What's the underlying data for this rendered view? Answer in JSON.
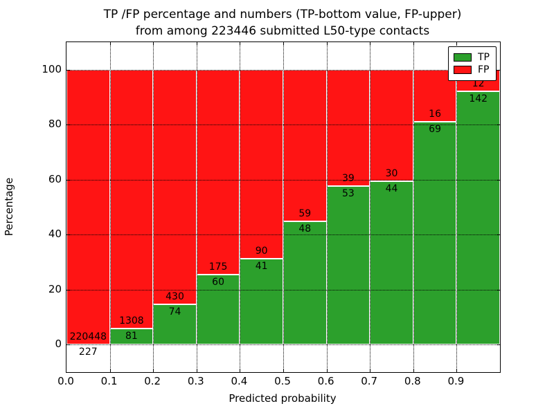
{
  "title": {
    "line1": "TP /FP percentage and numbers (TP-bottom value, FP-upper)",
    "line2": "from among 223446 submitted L50-type contacts"
  },
  "axes": {
    "xlabel": "Predicted probability",
    "ylabel": "Percentage"
  },
  "legend": {
    "items": [
      {
        "label": "TP",
        "color": "#2ca02c"
      },
      {
        "label": "FP",
        "color": "#ff1414"
      }
    ]
  },
  "total_contacts": 223446,
  "chart_data": {
    "type": "bar",
    "stacked": true,
    "title": "TP /FP percentage and numbers (TP-bottom value, FP-upper) from among 223446 submitted L50-type contacts",
    "xlabel": "Predicted probability",
    "ylabel": "Percentage",
    "categories": [
      "0.0-0.1",
      "0.1-0.2",
      "0.2-0.3",
      "0.3-0.4",
      "0.4-0.5",
      "0.5-0.6",
      "0.6-0.7",
      "0.7-0.8",
      "0.8-0.9",
      "0.9-1.0"
    ],
    "xticks": [
      "0.0",
      "0.1",
      "0.2",
      "0.3",
      "0.4",
      "0.5",
      "0.6",
      "0.7",
      "0.8",
      "0.9"
    ],
    "yticks": [
      0,
      20,
      40,
      60,
      80,
      100
    ],
    "ylim": [
      -10,
      110
    ],
    "xlim": [
      0.0,
      1.0
    ],
    "grid": true,
    "legend_position": "upper right",
    "series": [
      {
        "name": "TP",
        "color": "#2ca02c",
        "counts": [
          227,
          81,
          74,
          60,
          41,
          48,
          53,
          44,
          69,
          142
        ]
      },
      {
        "name": "FP",
        "color": "#ff1414",
        "counts": [
          220448,
          1308,
          430,
          175,
          90,
          59,
          39,
          30,
          16,
          12
        ]
      }
    ],
    "tp_percent": [
      0.1,
      5.83,
      14.68,
      25.53,
      31.3,
      44.86,
      57.61,
      59.46,
      81.18,
      92.21
    ],
    "annotation_note": "FP count printed above the TP/FP boundary, TP count printed below it"
  }
}
